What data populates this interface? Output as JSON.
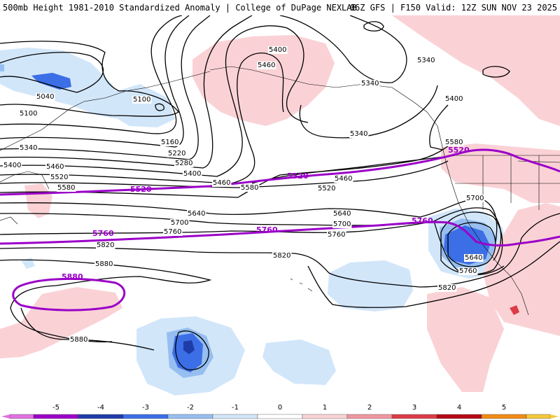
{
  "header": {
    "title_left": "500mb Height 1981-2010 Standardized Anomaly | College of DuPage NEXLAB",
    "title_right": "06Z GFS | F150 Valid: 12Z SUN NOV 23 2025"
  },
  "contour_labels": {
    "c5040": "5040",
    "c5100a": "5100",
    "c5100b": "5100",
    "c5160": "5160",
    "c5220": "5220",
    "c5280": "5280",
    "c5340a": "5340",
    "c5340b": "5340",
    "c5340c": "5340",
    "c5340d": "5340",
    "c5400a": "5400",
    "c5400b": "5400",
    "c5400c": "5400",
    "c5400d": "5400",
    "c5460a": "5460",
    "c5460b": "5460",
    "c5460c": "5460",
    "c5460d": "5460",
    "c5520a": "5520",
    "c5520b": "5520",
    "c5580a": "5580",
    "c5580b": "5580",
    "c5580c": "5580",
    "c5640a": "5640",
    "c5640b": "5640",
    "c5640c": "5640",
    "c5700a": "5700",
    "c5700b": "5700",
    "c5700c": "5700",
    "c5760a": "5760",
    "c5760b": "5760",
    "c5760c": "5760",
    "c5820a": "5820",
    "c5820b": "5820",
    "c5820c": "5820",
    "c5880a": "5880",
    "c5880b": "5880"
  },
  "highlight_labels": {
    "p5520a": "5520",
    "p5520b": "5520",
    "p5520c": "5520",
    "p5760a": "5760",
    "p5760b": "5760",
    "p5760c": "5760",
    "p5880": "5880"
  },
  "colorbar": {
    "ticks": [
      "-5",
      "-4",
      "-3",
      "-2",
      "-1",
      "0",
      "1",
      "2",
      "3",
      "4",
      "5"
    ],
    "colors": [
      "#e070e0",
      "#9b00c8",
      "#1e3ca8",
      "#3c6ee6",
      "#96bef0",
      "#d2e6fa",
      "#ffffff",
      "#fad2d6",
      "#f096a0",
      "#dc3c46",
      "#b40a14",
      "#f08c14",
      "#f5c83c"
    ]
  },
  "colors": {
    "neg1": "#d2e6fa",
    "neg2": "#96bef0",
    "neg3": "#3c6ee6",
    "neg4": "#1e3ca8",
    "pos1": "#fad2d6",
    "pos2": "#f096a0",
    "pos3": "#dc3c46",
    "highlight": "#9b00c8",
    "contour": "#000000"
  }
}
